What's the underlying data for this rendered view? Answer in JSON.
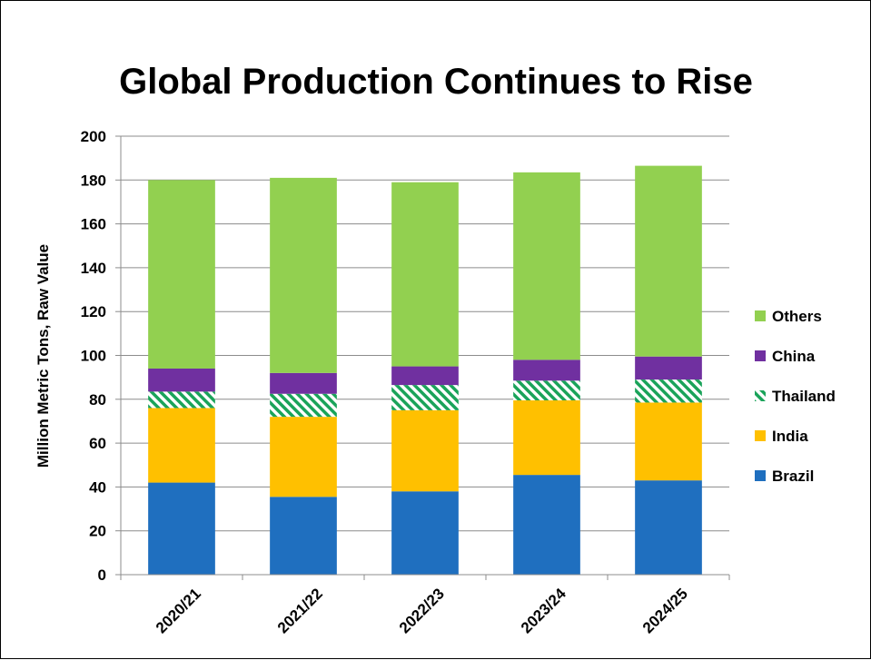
{
  "chart_data": {
    "type": "bar",
    "stacked": true,
    "title": "Global Production Continues to Rise",
    "xlabel": "",
    "ylabel": "Million Metric Tons, Raw Value",
    "ylim": [
      0,
      200
    ],
    "yticks": [
      0,
      20,
      40,
      60,
      80,
      100,
      120,
      140,
      160,
      180,
      200
    ],
    "grid": true,
    "legend_position": "right",
    "categories": [
      "2020/21",
      "2021/22",
      "2022/23",
      "2023/24",
      "2024/25"
    ],
    "series": [
      {
        "name": "Brazil",
        "color": "#1f6fbf",
        "pattern": "solid",
        "values": [
          42,
          35.5,
          38,
          45.5,
          43
        ]
      },
      {
        "name": "India",
        "color": "#ffc000",
        "pattern": "solid",
        "values": [
          34,
          36.5,
          37,
          34,
          35.5
        ]
      },
      {
        "name": "Thailand",
        "color": "#1aa35a",
        "pattern": "hatch",
        "values": [
          7.5,
          10.5,
          11.5,
          9,
          10.5
        ]
      },
      {
        "name": "China",
        "color": "#7030a0",
        "pattern": "solid",
        "values": [
          10.5,
          9.5,
          8.5,
          9.5,
          10.5
        ]
      },
      {
        "name": "Others",
        "color": "#92d050",
        "pattern": "solid",
        "values": [
          86,
          89,
          84,
          85.5,
          87
        ]
      }
    ]
  }
}
